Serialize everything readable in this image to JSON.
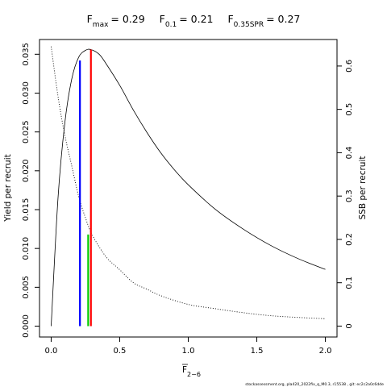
{
  "chart_data": {
    "type": "line",
    "title_parts": {
      "fmax_sub": "max",
      "fmax_value": "= 0.29",
      "f01_sub": "0.1",
      "f01_value": "= 0.21",
      "fspr_sub": "0.35SPR",
      "fspr_value": "= 0.27",
      "f_letter": "F"
    },
    "xlabel": {
      "main": "F",
      "sub": "2−6"
    },
    "ylabel": "Yield per recruit",
    "y2label": "SSB per recruit",
    "xlim": [
      -0.085,
      2.085
    ],
    "ylim": [
      -0.0014,
      0.0369
    ],
    "y2lim": [
      -0.0252,
      0.6612
    ],
    "x_ticks": [
      0,
      0.5,
      1,
      1.5,
      2
    ],
    "x_tick_labels": [
      "0.0",
      "0.5",
      "1.0",
      "1.5",
      "2.0"
    ],
    "y_ticks": [
      0,
      0.005,
      0.01,
      0.015,
      0.02,
      0.025,
      0.03,
      0.035
    ],
    "y_tick_labels": [
      "0.000",
      "0.005",
      "0.010",
      "0.015",
      "0.020",
      "0.025",
      "0.030",
      "0.035"
    ],
    "y2_ticks": [
      0,
      0.1,
      0.2,
      0.3,
      0.4,
      0.5,
      0.6
    ],
    "y2_tick_labels": [
      "0",
      "0.1",
      "0.2",
      "0.3",
      "0.4",
      "0.5",
      "0.6"
    ],
    "series": [
      {
        "style": "solid",
        "axis": "left",
        "x": [
          0,
          0.05,
          0.1,
          0.15,
          0.2,
          0.25,
          0.29,
          0.35,
          0.4,
          0.5,
          0.6,
          0.7,
          0.8,
          0.9,
          1.0,
          1.2,
          1.4,
          1.6,
          1.8,
          2.0
        ],
        "y": [
          0,
          0.0165,
          0.0262,
          0.0318,
          0.0346,
          0.0355,
          0.0356,
          0.035,
          0.0338,
          0.031,
          0.0278,
          0.0249,
          0.0223,
          0.0201,
          0.0182,
          0.015,
          0.0125,
          0.0104,
          0.0087,
          0.0073
        ]
      },
      {
        "style": "dotted",
        "axis": "right",
        "x": [
          0,
          0.05,
          0.1,
          0.15,
          0.2,
          0.25,
          0.3,
          0.4,
          0.5,
          0.6,
          0.7,
          0.8,
          1.0,
          1.2,
          1.4,
          1.6,
          1.8,
          2.0
        ],
        "y": [
          0.645,
          0.53,
          0.44,
          0.37,
          0.3,
          0.25,
          0.21,
          0.16,
          0.13,
          0.1,
          0.085,
          0.07,
          0.05,
          0.04,
          0.031,
          0.024,
          0.02,
          0.017
        ]
      }
    ],
    "vlines": [
      {
        "label": "F0.1",
        "x": 0.21,
        "ymax": 0.0342,
        "color": "#0000ff"
      },
      {
        "label": "F0.35SPR",
        "x": 0.27,
        "ymax": 0.0118,
        "color": "#00cd00"
      },
      {
        "label": "Fmax",
        "x": 0.29,
        "ymax": 0.0356,
        "color": "#ff0000"
      }
    ],
    "grid": false,
    "footnote": "stockassessment.org, pla420_2022fix_q_M0.3, r15538 , git: ec2c2a0c6dde"
  }
}
